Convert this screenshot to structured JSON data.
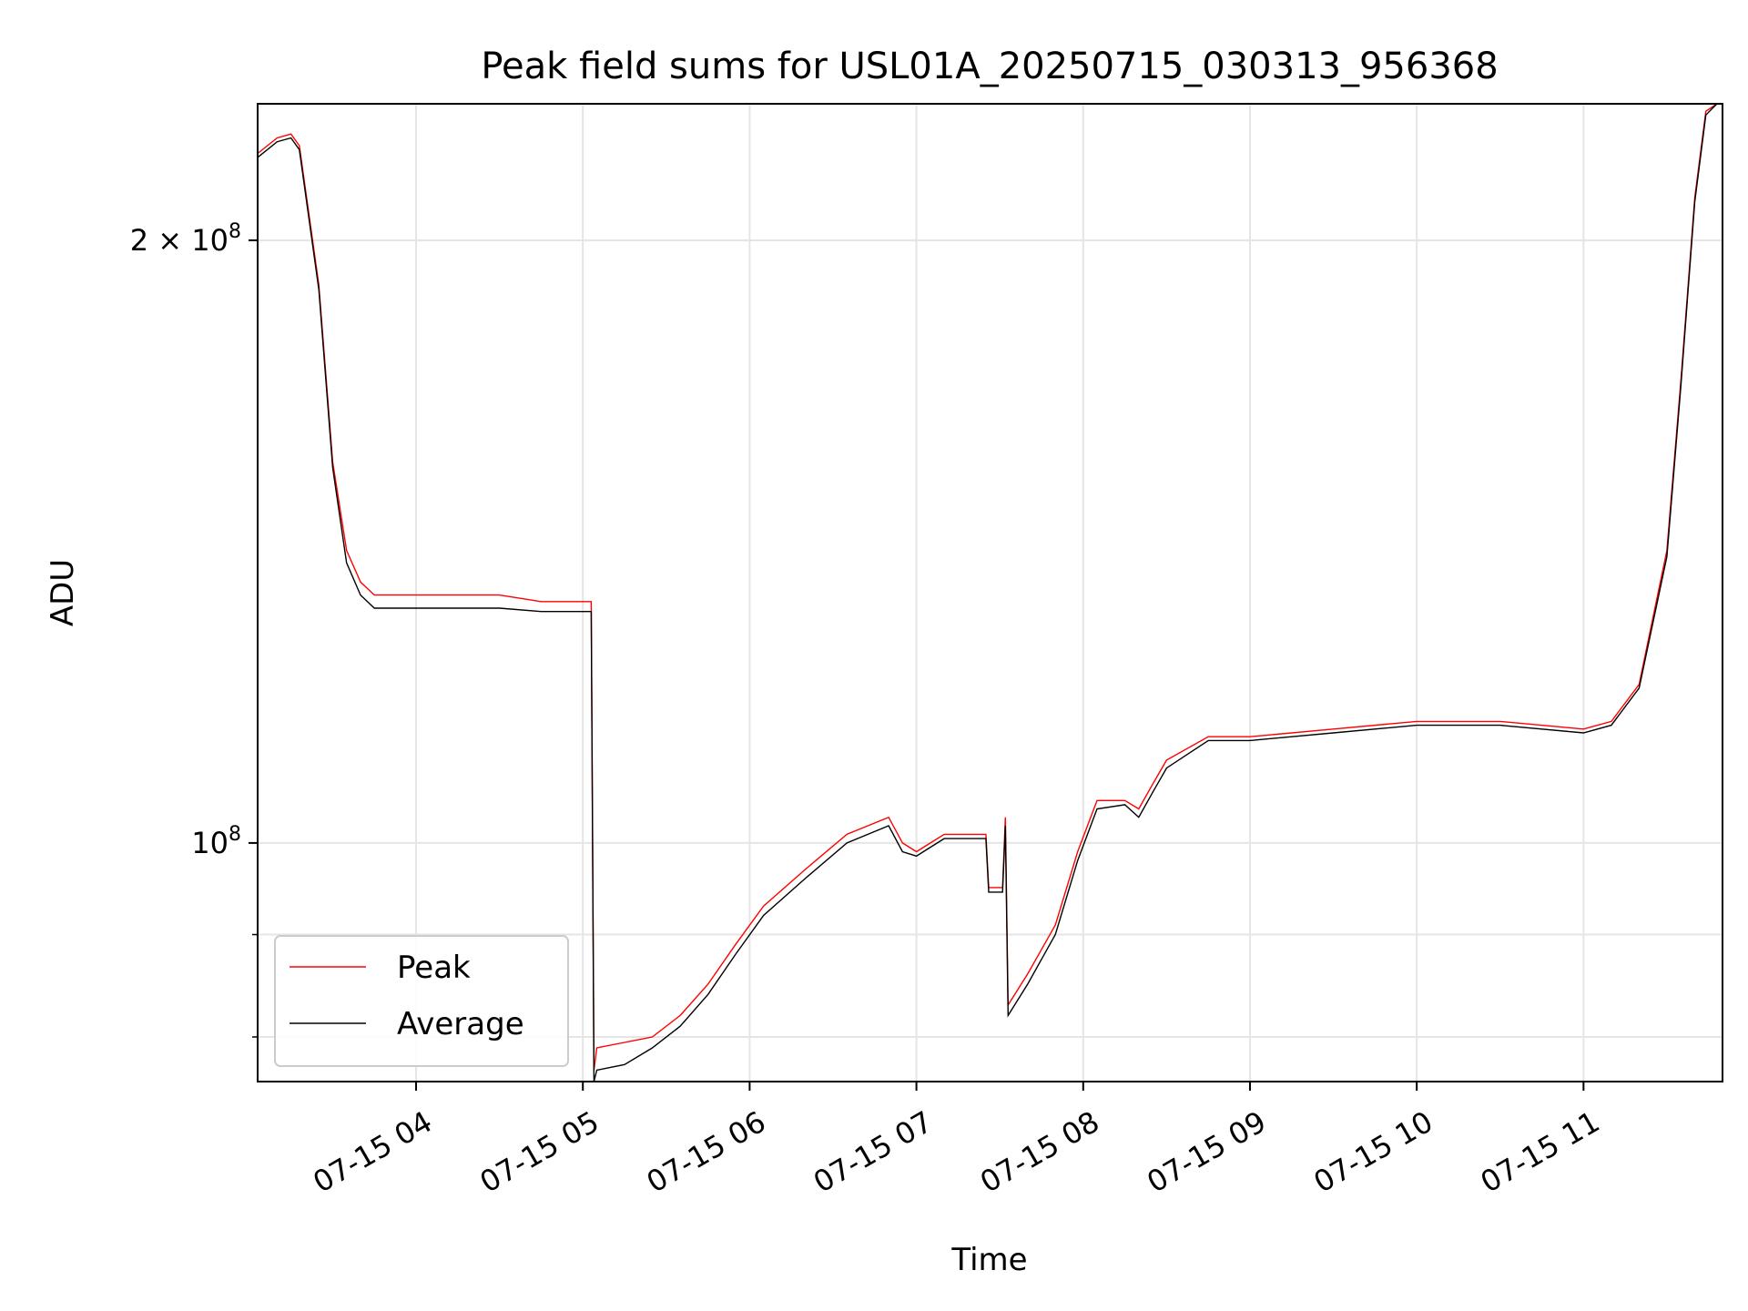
{
  "chart_data": {
    "type": "line",
    "title": "Peak field sums for USL01A_20250715_030313_956368",
    "xlabel": "Time",
    "ylabel": "ADU",
    "yscale": "log",
    "xlim": [
      "2025-07-15 03:03",
      "2025-07-15 11:50"
    ],
    "ylim": [
      76000000,
      234000000
    ],
    "x_ticks": [
      {
        "value": "2025-07-15 04:00",
        "label": "07-15 04"
      },
      {
        "value": "2025-07-15 05:00",
        "label": "07-15 05"
      },
      {
        "value": "2025-07-15 06:00",
        "label": "07-15 06"
      },
      {
        "value": "2025-07-15 07:00",
        "label": "07-15 07"
      },
      {
        "value": "2025-07-15 08:00",
        "label": "07-15 08"
      },
      {
        "value": "2025-07-15 09:00",
        "label": "07-15 09"
      },
      {
        "value": "2025-07-15 10:00",
        "label": "07-15 10"
      },
      {
        "value": "2025-07-15 11:00",
        "label": "07-15 11"
      }
    ],
    "y_major_ticks": [
      {
        "value": 100000000,
        "label_base": "10",
        "label_exp": "8",
        "label_prefix": ""
      },
      {
        "value": 200000000,
        "label_base": "10",
        "label_exp": "8",
        "label_prefix": "2 × "
      }
    ],
    "y_minor_gridlines": [
      80000000,
      90000000
    ],
    "grid": true,
    "legend_position": "lower-left",
    "colors": {
      "peak": "#ff0000",
      "average": "#000000",
      "grid": "#e5e5e5"
    },
    "series": [
      {
        "name": "Peak",
        "color": "#ff0000",
        "x": [
          "2025-07-15 03:03",
          "2025-07-15 03:10",
          "2025-07-15 03:15",
          "2025-07-15 03:18",
          "2025-07-15 03:25",
          "2025-07-15 03:30",
          "2025-07-15 03:35",
          "2025-07-15 03:40",
          "2025-07-15 03:45",
          "2025-07-15 03:55",
          "2025-07-15 04:10",
          "2025-07-15 04:30",
          "2025-07-15 04:45",
          "2025-07-15 05:03",
          "2025-07-15 05:04",
          "2025-07-15 05:05",
          "2025-07-15 05:15",
          "2025-07-15 05:25",
          "2025-07-15 05:35",
          "2025-07-15 05:45",
          "2025-07-15 05:55",
          "2025-07-15 06:05",
          "2025-07-15 06:20",
          "2025-07-15 06:35",
          "2025-07-15 06:50",
          "2025-07-15 06:55",
          "2025-07-15 07:00",
          "2025-07-15 07:10",
          "2025-07-15 07:25",
          "2025-07-15 07:26",
          "2025-07-15 07:31",
          "2025-07-15 07:32",
          "2025-07-15 07:33",
          "2025-07-15 07:40",
          "2025-07-15 07:50",
          "2025-07-15 07:58",
          "2025-07-15 08:05",
          "2025-07-15 08:15",
          "2025-07-15 08:20",
          "2025-07-15 08:25",
          "2025-07-15 08:30",
          "2025-07-15 08:45",
          "2025-07-15 09:00",
          "2025-07-15 09:30",
          "2025-07-15 10:00",
          "2025-07-15 10:30",
          "2025-07-15 11:00",
          "2025-07-15 11:10",
          "2025-07-15 11:20",
          "2025-07-15 11:30",
          "2025-07-15 11:35",
          "2025-07-15 11:40",
          "2025-07-15 11:44",
          "2025-07-15 11:48"
        ],
        "values": [
          221000000,
          225000000,
          226000000,
          223000000,
          190000000,
          155000000,
          140000000,
          135000000,
          133000000,
          133000000,
          133000000,
          133000000,
          132000000,
          132000000,
          77000000,
          79000000,
          79500000,
          80000000,
          82000000,
          85000000,
          89000000,
          93000000,
          97000000,
          101000000,
          103000000,
          100000000,
          99000000,
          101000000,
          101000000,
          95000000,
          95000000,
          103000000,
          83000000,
          86000000,
          91000000,
          99000000,
          105000000,
          105000000,
          104000000,
          107000000,
          110000000,
          113000000,
          113000000,
          114000000,
          115000000,
          115000000,
          114000000,
          115000000,
          120000000,
          140000000,
          170000000,
          210000000,
          232000000,
          234000000
        ]
      },
      {
        "name": "Average",
        "color": "#000000",
        "x": [
          "2025-07-15 03:03",
          "2025-07-15 03:10",
          "2025-07-15 03:15",
          "2025-07-15 03:18",
          "2025-07-15 03:25",
          "2025-07-15 03:30",
          "2025-07-15 03:35",
          "2025-07-15 03:40",
          "2025-07-15 03:45",
          "2025-07-15 03:55",
          "2025-07-15 04:10",
          "2025-07-15 04:30",
          "2025-07-15 04:45",
          "2025-07-15 05:03",
          "2025-07-15 05:04",
          "2025-07-15 05:05",
          "2025-07-15 05:15",
          "2025-07-15 05:25",
          "2025-07-15 05:35",
          "2025-07-15 05:45",
          "2025-07-15 05:55",
          "2025-07-15 06:05",
          "2025-07-15 06:20",
          "2025-07-15 06:35",
          "2025-07-15 06:50",
          "2025-07-15 06:55",
          "2025-07-15 07:00",
          "2025-07-15 07:10",
          "2025-07-15 07:25",
          "2025-07-15 07:26",
          "2025-07-15 07:31",
          "2025-07-15 07:32",
          "2025-07-15 07:33",
          "2025-07-15 07:40",
          "2025-07-15 07:50",
          "2025-07-15 07:58",
          "2025-07-15 08:05",
          "2025-07-15 08:15",
          "2025-07-15 08:20",
          "2025-07-15 08:25",
          "2025-07-15 08:30",
          "2025-07-15 08:45",
          "2025-07-15 09:00",
          "2025-07-15 09:30",
          "2025-07-15 10:00",
          "2025-07-15 10:30",
          "2025-07-15 11:00",
          "2025-07-15 11:10",
          "2025-07-15 11:20",
          "2025-07-15 11:30",
          "2025-07-15 11:35",
          "2025-07-15 11:40",
          "2025-07-15 11:44",
          "2025-07-15 11:48"
        ],
        "values": [
          220000000,
          224000000,
          225000000,
          222000000,
          189000000,
          154000000,
          138000000,
          133000000,
          131000000,
          131000000,
          131000000,
          131000000,
          130500000,
          130500000,
          76000000,
          77000000,
          77500000,
          79000000,
          81000000,
          84000000,
          88000000,
          92000000,
          96000000,
          100000000,
          102000000,
          99000000,
          98500000,
          100500000,
          100500000,
          94500000,
          94500000,
          102000000,
          82000000,
          85000000,
          90000000,
          98000000,
          104000000,
          104500000,
          103000000,
          106000000,
          109000000,
          112500000,
          112500000,
          113500000,
          114500000,
          114500000,
          113500000,
          114500000,
          119500000,
          139000000,
          169000000,
          209000000,
          231000000,
          234000000
        ]
      }
    ]
  }
}
